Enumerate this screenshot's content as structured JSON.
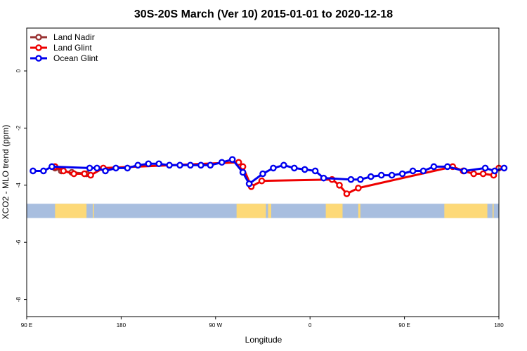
{
  "chart_data": {
    "type": "line",
    "title": "30S-20S March (Ver 10)   2015-01-01 to 2020-12-18",
    "xlabel": "Longitude",
    "ylabel": "XCO2 - MLO trend (ppm)",
    "x_ticks": [
      {
        "value": 90,
        "label": "90 E"
      },
      {
        "value": 180,
        "label": "180"
      },
      {
        "value": 270,
        "label": "90 W"
      },
      {
        "value": 360,
        "label": "0"
      },
      {
        "value": 450,
        "label": "90 E"
      },
      {
        "value": 540,
        "label": "180"
      }
    ],
    "y_ticks": [
      {
        "value": 0,
        "label": "0"
      },
      {
        "value": -2,
        "label": "-2"
      },
      {
        "value": -4,
        "label": "-4"
      },
      {
        "value": -6,
        "label": "-6"
      },
      {
        "value": -8,
        "label": "-8"
      }
    ],
    "xlim": [
      90,
      540
    ],
    "ylim": [
      -8.6,
      1.5
    ],
    "legend_position": "top-left",
    "land_band": {
      "y_top": -4.65,
      "y_bottom": -5.15,
      "ocean_color": "#a8bedf",
      "land_color": "#fdd978",
      "land_ranges": [
        [
          117,
          147
        ],
        [
          153,
          154
        ],
        [
          290,
          318
        ],
        [
          320,
          323
        ],
        [
          375,
          391
        ],
        [
          406,
          408
        ],
        [
          488,
          529
        ],
        [
          534,
          535
        ]
      ]
    },
    "series": [
      {
        "name": "Land Nadir",
        "color": "#993333",
        "x": [
          117,
          123,
          133,
          147
        ],
        "y": [
          -3.4,
          -3.5,
          -3.55,
          -3.6
        ]
      },
      {
        "name": "Land Glint",
        "color": "#ee0000",
        "x": [
          117,
          125,
          135,
          145,
          151,
          163,
          292,
          296,
          304,
          314,
          381,
          388,
          395,
          406,
          496,
          506,
          516,
          525,
          535,
          540
        ],
        "y": [
          -3.35,
          -3.5,
          -3.6,
          -3.6,
          -3.65,
          -3.4,
          -3.2,
          -3.35,
          -4.05,
          -3.85,
          -3.8,
          -4.0,
          -4.3,
          -4.1,
          -3.35,
          -3.5,
          -3.6,
          -3.6,
          -3.65,
          -3.4
        ]
      },
      {
        "name": "Ocean Glint",
        "color": "#0000ee",
        "x": [
          96,
          106,
          114,
          150,
          157,
          165,
          175,
          186,
          196,
          206,
          216,
          226,
          236,
          246,
          256,
          265,
          276,
          286,
          296,
          302,
          315,
          325,
          335,
          345,
          355,
          365,
          373,
          399,
          408,
          418,
          428,
          438,
          448,
          458,
          468,
          478,
          491,
          507,
          527,
          536,
          545
        ],
        "y": [
          -3.5,
          -3.5,
          -3.35,
          -3.4,
          -3.4,
          -3.5,
          -3.4,
          -3.4,
          -3.3,
          -3.25,
          -3.25,
          -3.3,
          -3.3,
          -3.3,
          -3.3,
          -3.3,
          -3.2,
          -3.1,
          -3.55,
          -3.95,
          -3.6,
          -3.4,
          -3.3,
          -3.4,
          -3.45,
          -3.5,
          -3.75,
          -3.8,
          -3.8,
          -3.7,
          -3.65,
          -3.65,
          -3.6,
          -3.5,
          -3.5,
          -3.35,
          -3.35,
          -3.5,
          -3.4,
          -3.5,
          -3.4
        ]
      }
    ]
  }
}
